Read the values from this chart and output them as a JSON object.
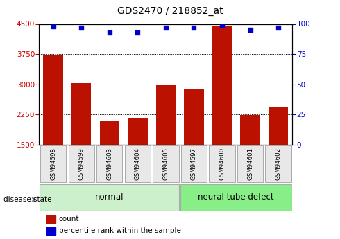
{
  "title": "GDS2470 / 218852_at",
  "samples": [
    "GSM94598",
    "GSM94599",
    "GSM94603",
    "GSM94604",
    "GSM94605",
    "GSM94597",
    "GSM94600",
    "GSM94601",
    "GSM94602"
  ],
  "counts": [
    3720,
    3020,
    2080,
    2170,
    2980,
    2890,
    4440,
    2230,
    2450
  ],
  "percentiles": [
    98,
    97,
    93,
    93,
    97,
    97,
    99,
    95,
    97
  ],
  "groups": [
    "normal",
    "normal",
    "normal",
    "normal",
    "normal",
    "neural tube defect",
    "neural tube defect",
    "neural tube defect",
    "neural tube defect"
  ],
  "ylim_left": [
    1500,
    4500
  ],
  "ylim_right": [
    0,
    100
  ],
  "yticks_left": [
    1500,
    2250,
    3000,
    3750,
    4500
  ],
  "yticks_right": [
    0,
    25,
    50,
    75,
    100
  ],
  "bar_color": "#bb1100",
  "scatter_color": "#0000cc",
  "grid_color": "#000000",
  "normal_color": "#ccf0cc",
  "defect_color": "#88ee88",
  "bg_color": "#e8e8e8",
  "left_label_color": "#cc0000",
  "right_label_color": "#0000cc",
  "disease_state_label": "disease state",
  "normal_label": "normal",
  "defect_label": "neural tube defect",
  "legend_count": "count",
  "legend_pct": "percentile rank within the sample"
}
